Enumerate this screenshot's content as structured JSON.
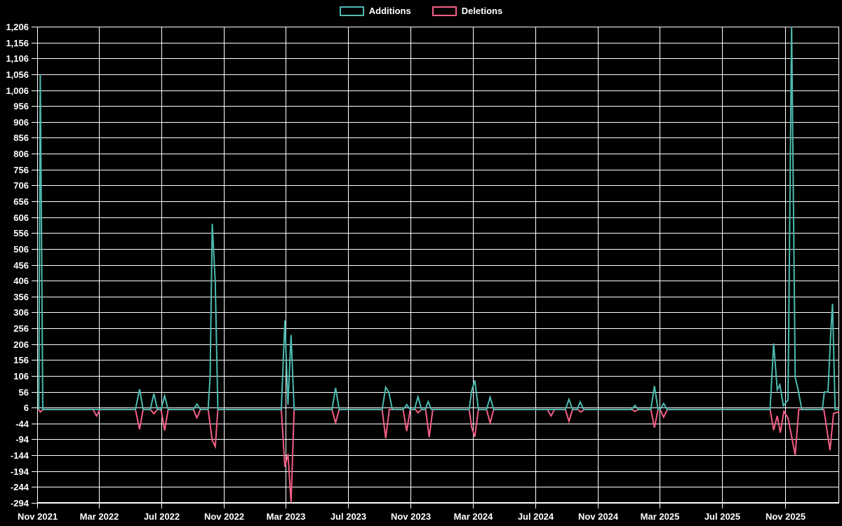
{
  "legend": {
    "items": [
      {
        "label": "Additions",
        "color": "#4cbab0"
      },
      {
        "label": "Deletions",
        "color": "#f35e85"
      }
    ]
  },
  "chart_data": {
    "type": "line",
    "title": "",
    "background_color": "#000000",
    "grid": true,
    "grid_color": "#ffffff",
    "text_color": "#ffffff",
    "legend_position": "top-center",
    "x_axis": {
      "domain": [
        "2021-11-01",
        "2026-02-15"
      ],
      "ticks": [
        {
          "label": "Nov 2021",
          "date": "2021-11-01"
        },
        {
          "label": "Mar 2022",
          "date": "2022-03-01"
        },
        {
          "label": "Jul 2022",
          "date": "2022-07-01"
        },
        {
          "label": "Nov 2022",
          "date": "2022-11-01"
        },
        {
          "label": "Mar 2023",
          "date": "2023-03-01"
        },
        {
          "label": "Jul 2023",
          "date": "2023-07-01"
        },
        {
          "label": "Nov 2023",
          "date": "2023-11-01"
        },
        {
          "label": "Mar 2024",
          "date": "2024-03-01"
        },
        {
          "label": "Jul 2024",
          "date": "2024-07-01"
        },
        {
          "label": "Nov 2024",
          "date": "2024-11-01"
        },
        {
          "label": "Mar 2025",
          "date": "2025-03-01"
        },
        {
          "label": "Jul 2025",
          "date": "2025-07-01"
        },
        {
          "label": "Nov 2025",
          "date": "2025-11-01"
        }
      ]
    },
    "y_axis": {
      "min": -294,
      "max": 1206,
      "step": 50,
      "tick_labels": [
        "1,206",
        "1,156",
        "1,106",
        "1,056",
        "1,006",
        "956",
        "906",
        "856",
        "806",
        "756",
        "706",
        "656",
        "606",
        "556",
        "506",
        "456",
        "406",
        "356",
        "306",
        "256",
        "206",
        "156",
        "106",
        "56",
        "6",
        "-44",
        "-94",
        "-144",
        "-194",
        "-244",
        "-294"
      ]
    },
    "series": [
      {
        "name": "Additions",
        "color": "#4cbab0",
        "points": [
          [
            "2021-11-04",
            0
          ],
          [
            "2021-11-07",
            1056
          ],
          [
            "2021-11-12",
            0
          ],
          [
            "2022-05-12",
            0
          ],
          [
            "2022-05-20",
            64
          ],
          [
            "2022-05-27",
            0
          ],
          [
            "2022-06-10",
            0
          ],
          [
            "2022-06-17",
            50
          ],
          [
            "2022-06-24",
            0
          ],
          [
            "2022-07-01",
            0
          ],
          [
            "2022-07-08",
            43
          ],
          [
            "2022-07-15",
            0
          ],
          [
            "2022-09-02",
            0
          ],
          [
            "2022-09-09",
            17
          ],
          [
            "2022-09-16",
            0
          ],
          [
            "2022-10-01",
            0
          ],
          [
            "2022-10-05",
            105
          ],
          [
            "2022-10-09",
            585
          ],
          [
            "2022-10-15",
            400
          ],
          [
            "2022-10-20",
            0
          ],
          [
            "2023-02-21",
            0
          ],
          [
            "2023-02-28",
            280
          ],
          [
            "2023-03-06",
            15
          ],
          [
            "2023-03-12",
            235
          ],
          [
            "2023-03-18",
            0
          ],
          [
            "2023-05-31",
            0
          ],
          [
            "2023-06-07",
            68
          ],
          [
            "2023-06-14",
            0
          ],
          [
            "2023-09-06",
            0
          ],
          [
            "2023-09-13",
            70
          ],
          [
            "2023-09-19",
            55
          ],
          [
            "2023-09-26",
            0
          ],
          [
            "2023-10-17",
            0
          ],
          [
            "2023-10-24",
            15
          ],
          [
            "2023-10-31",
            0
          ],
          [
            "2023-11-08",
            0
          ],
          [
            "2023-11-15",
            40
          ],
          [
            "2023-11-22",
            0
          ],
          [
            "2023-11-29",
            0
          ],
          [
            "2023-12-05",
            25
          ],
          [
            "2023-12-11",
            0
          ],
          [
            "2024-02-23",
            0
          ],
          [
            "2024-02-28",
            60
          ],
          [
            "2024-03-05",
            92
          ],
          [
            "2024-03-12",
            0
          ],
          [
            "2024-03-28",
            0
          ],
          [
            "2024-04-04",
            39
          ],
          [
            "2024-04-11",
            0
          ],
          [
            "2024-08-29",
            0
          ],
          [
            "2024-09-05",
            32
          ],
          [
            "2024-09-12",
            0
          ],
          [
            "2024-09-21",
            0
          ],
          [
            "2024-09-27",
            24
          ],
          [
            "2024-10-04",
            0
          ],
          [
            "2025-01-05",
            0
          ],
          [
            "2025-01-12",
            13
          ],
          [
            "2025-01-19",
            0
          ],
          [
            "2025-02-12",
            0
          ],
          [
            "2025-02-19",
            74
          ],
          [
            "2025-02-26",
            0
          ],
          [
            "2025-03-02",
            0
          ],
          [
            "2025-03-09",
            19
          ],
          [
            "2025-03-16",
            0
          ],
          [
            "2025-10-03",
            0
          ],
          [
            "2025-10-10",
            208
          ],
          [
            "2025-10-17",
            62
          ],
          [
            "2025-10-22",
            78
          ],
          [
            "2025-10-29",
            12
          ],
          [
            "2025-11-07",
            30
          ],
          [
            "2025-11-14",
            1206
          ],
          [
            "2025-11-21",
            100
          ],
          [
            "2025-11-26",
            68
          ],
          [
            "2025-12-04",
            0
          ],
          [
            "2026-01-13",
            0
          ],
          [
            "2026-01-17",
            55
          ],
          [
            "2026-01-24",
            55
          ],
          [
            "2026-01-30",
            255
          ],
          [
            "2026-02-02",
            333
          ],
          [
            "2026-02-07",
            0
          ],
          [
            "2026-02-15",
            0
          ]
        ]
      },
      {
        "name": "Deletions",
        "color": "#f35e85",
        "points": [
          [
            "2021-11-04",
            0
          ],
          [
            "2021-11-07",
            -8
          ],
          [
            "2021-11-12",
            0
          ],
          [
            "2022-02-18",
            0
          ],
          [
            "2022-02-25",
            -20
          ],
          [
            "2022-03-04",
            0
          ],
          [
            "2022-05-12",
            0
          ],
          [
            "2022-05-20",
            -62
          ],
          [
            "2022-05-27",
            0
          ],
          [
            "2022-06-10",
            0
          ],
          [
            "2022-06-17",
            -13
          ],
          [
            "2022-06-24",
            0
          ],
          [
            "2022-07-01",
            0
          ],
          [
            "2022-07-08",
            -66
          ],
          [
            "2022-07-15",
            0
          ],
          [
            "2022-09-02",
            0
          ],
          [
            "2022-09-09",
            -26
          ],
          [
            "2022-09-16",
            0
          ],
          [
            "2022-10-01",
            0
          ],
          [
            "2022-10-09",
            -97
          ],
          [
            "2022-10-15",
            -117
          ],
          [
            "2022-10-20",
            0
          ],
          [
            "2023-02-21",
            0
          ],
          [
            "2023-02-28",
            -180
          ],
          [
            "2023-03-06",
            -140
          ],
          [
            "2023-03-12",
            -294
          ],
          [
            "2023-03-18",
            0
          ],
          [
            "2023-05-31",
            0
          ],
          [
            "2023-06-07",
            -42
          ],
          [
            "2023-06-14",
            0
          ],
          [
            "2023-09-06",
            0
          ],
          [
            "2023-09-13",
            -90
          ],
          [
            "2023-09-20",
            0
          ],
          [
            "2023-10-17",
            0
          ],
          [
            "2023-10-24",
            -68
          ],
          [
            "2023-10-31",
            0
          ],
          [
            "2023-11-10",
            0
          ],
          [
            "2023-11-15",
            -10
          ],
          [
            "2023-11-22",
            0
          ],
          [
            "2023-11-30",
            0
          ],
          [
            "2023-12-07",
            -87
          ],
          [
            "2023-12-14",
            0
          ],
          [
            "2024-02-23",
            0
          ],
          [
            "2024-02-28",
            -57
          ],
          [
            "2024-03-05",
            -86
          ],
          [
            "2024-03-12",
            0
          ],
          [
            "2024-03-28",
            0
          ],
          [
            "2024-04-04",
            -42
          ],
          [
            "2024-04-11",
            0
          ],
          [
            "2024-07-25",
            0
          ],
          [
            "2024-08-01",
            -20
          ],
          [
            "2024-08-08",
            0
          ],
          [
            "2024-08-29",
            0
          ],
          [
            "2024-09-05",
            -37
          ],
          [
            "2024-09-12",
            0
          ],
          [
            "2024-09-22",
            0
          ],
          [
            "2024-09-28",
            -8
          ],
          [
            "2024-10-05",
            0
          ],
          [
            "2025-01-06",
            0
          ],
          [
            "2025-01-12",
            -6
          ],
          [
            "2025-01-19",
            0
          ],
          [
            "2025-02-12",
            0
          ],
          [
            "2025-02-19",
            -57
          ],
          [
            "2025-02-26",
            0
          ],
          [
            "2025-03-02",
            0
          ],
          [
            "2025-03-09",
            -24
          ],
          [
            "2025-03-16",
            0
          ],
          [
            "2025-10-03",
            0
          ],
          [
            "2025-10-10",
            -65
          ],
          [
            "2025-10-17",
            -20
          ],
          [
            "2025-10-23",
            -73
          ],
          [
            "2025-10-30",
            -6
          ],
          [
            "2025-11-07",
            -27
          ],
          [
            "2025-11-21",
            -143
          ],
          [
            "2025-11-28",
            0
          ],
          [
            "2026-01-16",
            0
          ],
          [
            "2026-01-28",
            -128
          ],
          [
            "2026-02-04",
            -12
          ],
          [
            "2026-02-15",
            -8
          ]
        ]
      }
    ]
  }
}
